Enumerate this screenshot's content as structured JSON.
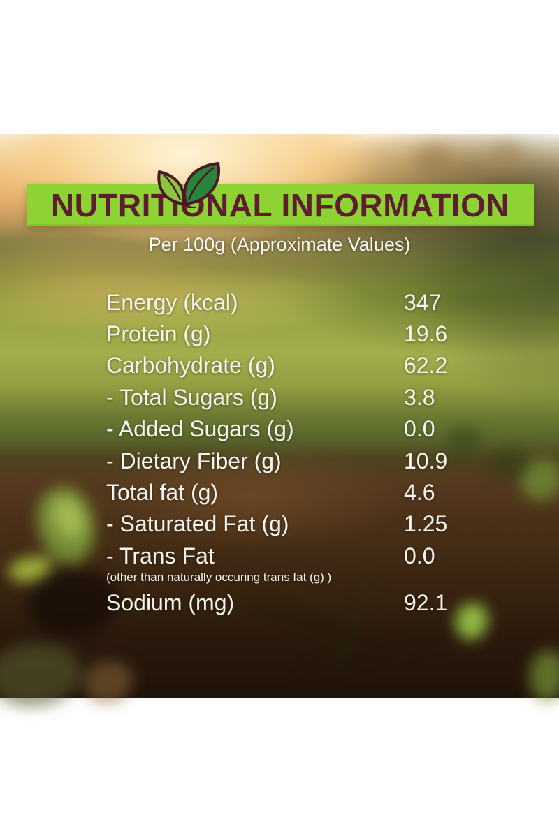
{
  "header": {
    "title": "NUTRITIONAL INFORMATION",
    "subtitle": "Per 100g (Approximate Values)",
    "banner_bg": "#8CD333",
    "title_color": "#5E1D31",
    "subtitle_color": "#FCFBF7"
  },
  "icons": {
    "leaf": {
      "name": "leaf-icon",
      "small_fill": "#8CC63F",
      "large_fill": "#27843A",
      "stroke": "#4D1526"
    }
  },
  "table": {
    "text_color": "#F7F5F0",
    "rows": [
      {
        "label": "Energy (kcal)",
        "value": "347"
      },
      {
        "label": "Protein (g)",
        "value": "19.6"
      },
      {
        "label": "Carbohydrate (g)",
        "value": "62.2"
      },
      {
        "label": "- Total Sugars (g)",
        "value": "3.8"
      },
      {
        "label": "- Added Sugars (g)",
        "value": "0.0"
      },
      {
        "label": "- Dietary Fiber (g)",
        "value": "10.9"
      },
      {
        "label": "Total fat (g)",
        "value": "4.6"
      },
      {
        "label": "- Saturated Fat (g)",
        "value": "1.25"
      },
      {
        "label": "- Trans Fat",
        "value": "0.0",
        "note": "(other than naturally occuring trans fat (g) )"
      },
      {
        "label": "Sodium (mg)",
        "value": "92.1"
      }
    ]
  }
}
